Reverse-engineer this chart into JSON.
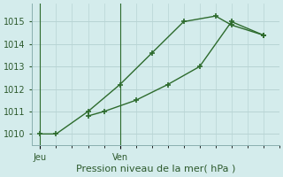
{
  "background_color": "#d4ecec",
  "grid_color": "#b8d4d4",
  "line_color": "#2d6b2d",
  "xlabel": "Pression niveau de la mer( hPa )",
  "ylim": [
    1009.5,
    1015.8
  ],
  "yticks": [
    1010,
    1011,
    1012,
    1013,
    1014,
    1015
  ],
  "line1_x": [
    0,
    1,
    3,
    5,
    7,
    9,
    11,
    12,
    14
  ],
  "line1_y": [
    1010.0,
    1010.0,
    1011.0,
    1012.2,
    1013.6,
    1015.0,
    1015.25,
    1014.85,
    1014.4
  ],
  "line2_x": [
    3,
    4,
    6,
    8,
    10,
    12,
    14
  ],
  "line2_y": [
    1010.8,
    1011.0,
    1011.5,
    1012.2,
    1013.0,
    1015.0,
    1014.4
  ],
  "xtick_positions": [
    0,
    5
  ],
  "xtick_labels": [
    "Jeu",
    "Ven"
  ],
  "vline_x": [
    0,
    5
  ],
  "xlim": [
    -0.5,
    15
  ]
}
